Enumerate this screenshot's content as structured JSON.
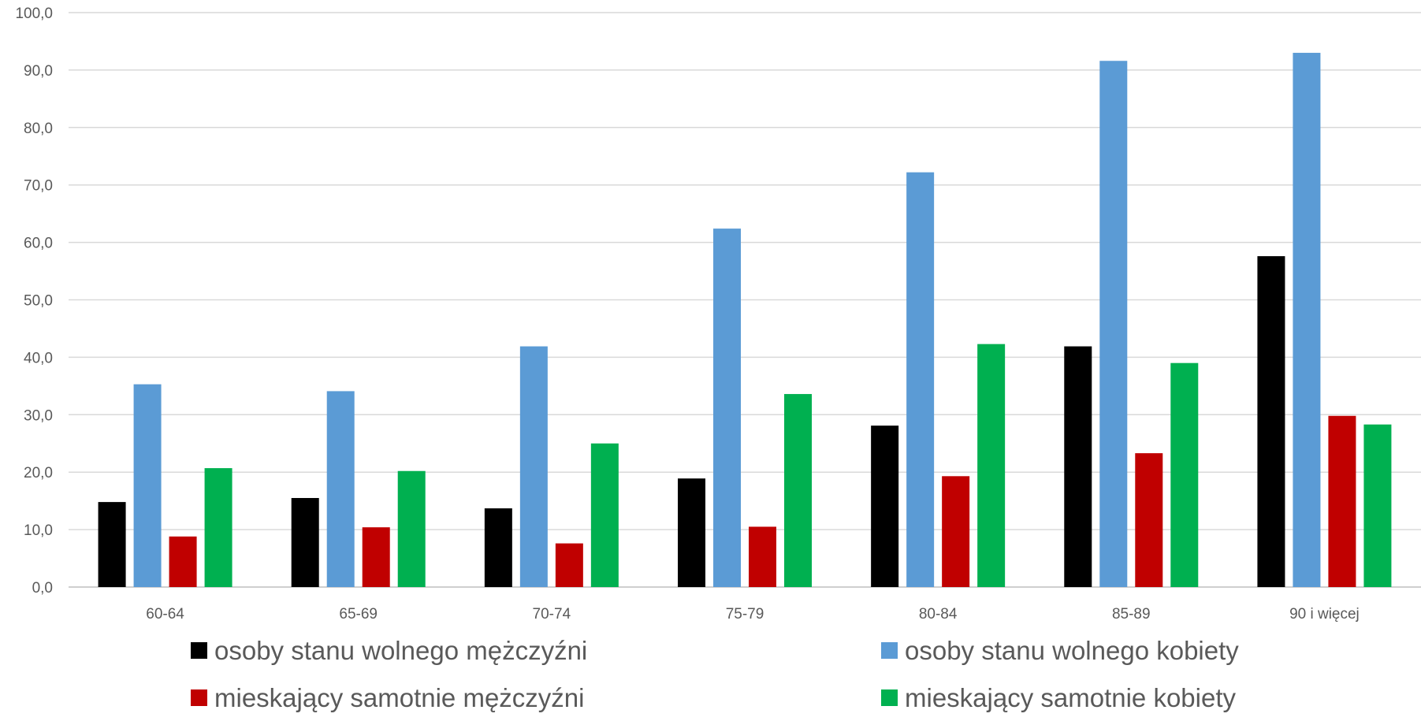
{
  "chart_data": {
    "type": "bar",
    "title": "",
    "xlabel": "",
    "ylabel": "",
    "ylim": [
      0,
      100
    ],
    "ytick_step": 10,
    "ytick_labels": [
      "0,0",
      "10,0",
      "20,0",
      "30,0",
      "40,0",
      "50,0",
      "60,0",
      "70,0",
      "80,0",
      "90,0",
      "100,0"
    ],
    "grid": true,
    "legend_placement": "bottom",
    "categories": [
      "60-64",
      "65-69",
      "70-74",
      "75-79",
      "80-84",
      "85-89",
      "90 i więcej"
    ],
    "series": [
      {
        "name": "osoby stanu wolnego mężczyźni",
        "color": "#000000",
        "values": [
          14.8,
          15.5,
          13.7,
          18.9,
          28.1,
          41.9,
          57.6
        ]
      },
      {
        "name": "osoby stanu wolnego kobiety",
        "color": "#5B9BD5",
        "values": [
          35.3,
          34.1,
          41.9,
          62.4,
          72.2,
          91.6,
          93.0
        ]
      },
      {
        "name": "mieskający samotnie mężczyźni",
        "color": "#C00000",
        "values": [
          8.8,
          10.4,
          7.6,
          10.5,
          19.3,
          23.3,
          29.8
        ]
      },
      {
        "name": "mieskający samotnie kobiety",
        "color": "#00B050",
        "values": [
          20.7,
          20.2,
          25.0,
          33.6,
          42.3,
          39.0,
          28.3
        ]
      }
    ]
  }
}
